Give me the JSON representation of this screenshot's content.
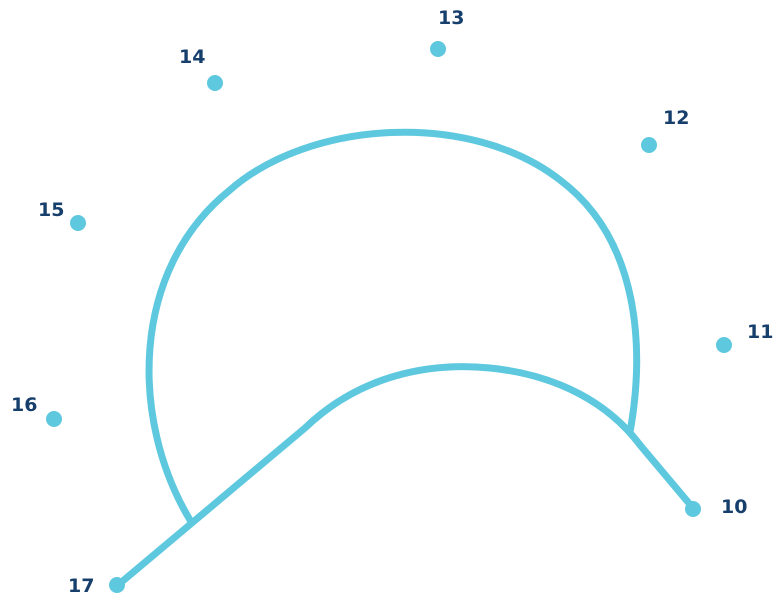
{
  "puzzle": {
    "colors": {
      "line": "#5ec8df",
      "dot": "#5ec8df",
      "label": "#173f6c",
      "background": "#ffffff"
    },
    "dots": [
      {
        "id": "10",
        "label": "10"
      },
      {
        "id": "11",
        "label": "11"
      },
      {
        "id": "12",
        "label": "12"
      },
      {
        "id": "13",
        "label": "13"
      },
      {
        "id": "14",
        "label": "14"
      },
      {
        "id": "15",
        "label": "15"
      },
      {
        "id": "16",
        "label": "16"
      },
      {
        "id": "17",
        "label": "17"
      }
    ]
  }
}
